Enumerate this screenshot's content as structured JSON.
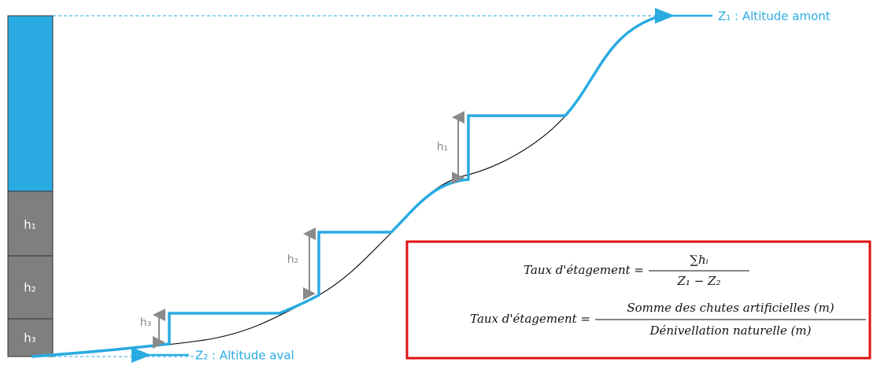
{
  "diagram": {
    "upstream_label": "Z₁ : Altitude amont",
    "downstream_label": "Z₂ : Altitude aval",
    "bar_labels": [
      "h₁",
      "h₂",
      "h₃"
    ],
    "drop_labels": [
      "h₁",
      "h₂",
      "h₃"
    ],
    "formula_1": {
      "lhs": "Taux d'étagement =",
      "numerator": "∑hᵢ",
      "denominator": "Z₁ − Z₂"
    },
    "formula_2": {
      "lhs": "Taux d'étagement =",
      "numerator": "Somme des chutes artificielles (m)",
      "denominator": "Dénivellation naturelle (m)"
    }
  }
}
